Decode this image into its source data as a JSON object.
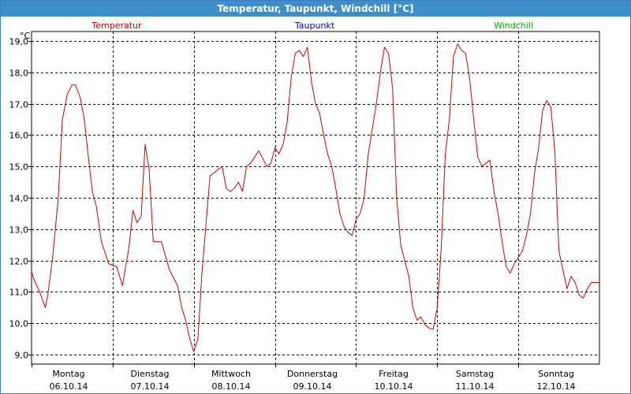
{
  "window": {
    "title": "Temperatur, Taupunkt, Windchill [°C]"
  },
  "legend": [
    {
      "label": "Temperatur",
      "color": "#cc0000"
    },
    {
      "label": "Taupunkt",
      "color": "#0000bb"
    },
    {
      "label": "Windchill",
      "color": "#00aa00"
    }
  ],
  "chart_data": {
    "type": "line",
    "title": "Temperatur, Taupunkt, Windchill [°C]",
    "ylabel": "°C",
    "ylim": [
      8.7,
      19.3
    ],
    "xlim": [
      0,
      7
    ],
    "grid": true,
    "legend_position": "top",
    "y_ticks": [
      "19,0",
      "18,0",
      "17,0",
      "16,0",
      "15,0",
      "14,0",
      "13,0",
      "12,0",
      "11,0",
      "10,0",
      "9,0"
    ],
    "y_tick_values": [
      19,
      18,
      17,
      16,
      15,
      14,
      13,
      12,
      11,
      10,
      9
    ],
    "x_ticks": [
      {
        "day": "Montag",
        "date": "06.10.14"
      },
      {
        "day": "Dienstag",
        "date": "07.10.14"
      },
      {
        "day": "Mittwoch",
        "date": "08.10.14"
      },
      {
        "day": "Donnerstag",
        "date": "09.10.14"
      },
      {
        "day": "Freitag",
        "date": "10.10.14"
      },
      {
        "day": "Samstag",
        "date": "11.10.14"
      },
      {
        "day": "Sonntag",
        "date": "12.10.14"
      }
    ],
    "series": [
      {
        "name": "Temperatur",
        "color": "#cc0000",
        "x": [
          0,
          0.03,
          0.1,
          0.17,
          0.2,
          0.26,
          0.33,
          0.38,
          0.44,
          0.5,
          0.54,
          0.6,
          0.65,
          0.7,
          0.75,
          0.8,
          0.86,
          0.9,
          0.95,
          1.05,
          1.12,
          1.2,
          1.25,
          1.3,
          1.35,
          1.4,
          1.45,
          1.5,
          1.6,
          1.7,
          1.8,
          1.85,
          1.9,
          1.95,
          2.0,
          2.05,
          2.1,
          2.2,
          2.3,
          2.35,
          2.4,
          2.45,
          2.5,
          2.55,
          2.6,
          2.65,
          2.7,
          2.8,
          2.9,
          2.95,
          3.0,
          3.05,
          3.1,
          3.15,
          3.2,
          3.25,
          3.3,
          3.35,
          3.4,
          3.45,
          3.5,
          3.55,
          3.6,
          3.65,
          3.7,
          3.75,
          3.8,
          3.85,
          3.9,
          3.95,
          4.0,
          4.05,
          4.1,
          4.15,
          4.2,
          4.25,
          4.3,
          4.35,
          4.4,
          4.45,
          4.5,
          4.55,
          4.6,
          4.65,
          4.7,
          4.75,
          4.8,
          4.85,
          4.9,
          4.95,
          5.0,
          5.05,
          5.1,
          5.15,
          5.2,
          5.25,
          5.3,
          5.35,
          5.4,
          5.45,
          5.5,
          5.55,
          5.6,
          5.65,
          5.7,
          5.75,
          5.8,
          5.85,
          5.9,
          5.95,
          6.0,
          6.05,
          6.1,
          6.15,
          6.2,
          6.25,
          6.3,
          6.35,
          6.4,
          6.45,
          6.5,
          6.55,
          6.6,
          6.65,
          6.7,
          6.75,
          6.8,
          6.85,
          6.9,
          6.95,
          7.0
        ],
        "values": [
          11.65,
          11.4,
          11.0,
          10.5,
          10.9,
          12.1,
          14.0,
          16.5,
          17.3,
          17.6,
          17.6,
          17.2,
          16.5,
          15.3,
          14.2,
          13.7,
          12.6,
          12.3,
          11.9,
          11.8,
          11.2,
          12.4,
          13.6,
          13.2,
          13.4,
          15.7,
          14.9,
          12.6,
          12.6,
          11.7,
          11.2,
          10.5,
          10.1,
          9.5,
          9.1,
          9.5,
          11.6,
          14.7,
          14.9,
          15.0,
          14.3,
          14.2,
          14.3,
          14.5,
          14.2,
          15.0,
          15.1,
          15.5,
          15.0,
          15.1,
          15.6,
          15.4,
          15.7,
          16.4,
          17.8,
          18.6,
          18.7,
          18.5,
          18.8,
          17.7,
          17.0,
          16.7,
          16.0,
          15.4,
          15.0,
          14.3,
          13.5,
          13.1,
          12.9,
          12.8,
          13.3,
          13.5,
          14.0,
          15.4,
          16.2,
          17.0,
          18.0,
          18.8,
          18.6,
          17.5,
          14.0,
          12.5,
          12.0,
          11.5,
          10.5,
          10.1,
          10.2,
          9.95,
          9.85,
          9.8,
          10.5,
          12.4,
          15.4,
          16.5,
          18.5,
          18.9,
          18.7,
          18.6,
          17.8,
          16.5,
          15.3,
          15.0,
          15.1,
          15.2,
          14.2,
          13.5,
          12.6,
          11.8,
          11.6,
          11.9,
          12.1,
          12.3,
          12.8,
          13.5,
          14.8,
          15.6,
          16.8,
          17.1,
          16.9,
          15.5,
          12.3,
          11.7,
          11.1,
          11.5,
          11.3,
          10.9,
          10.8,
          11.1,
          11.3,
          11.3,
          11.3
        ]
      }
    ]
  }
}
